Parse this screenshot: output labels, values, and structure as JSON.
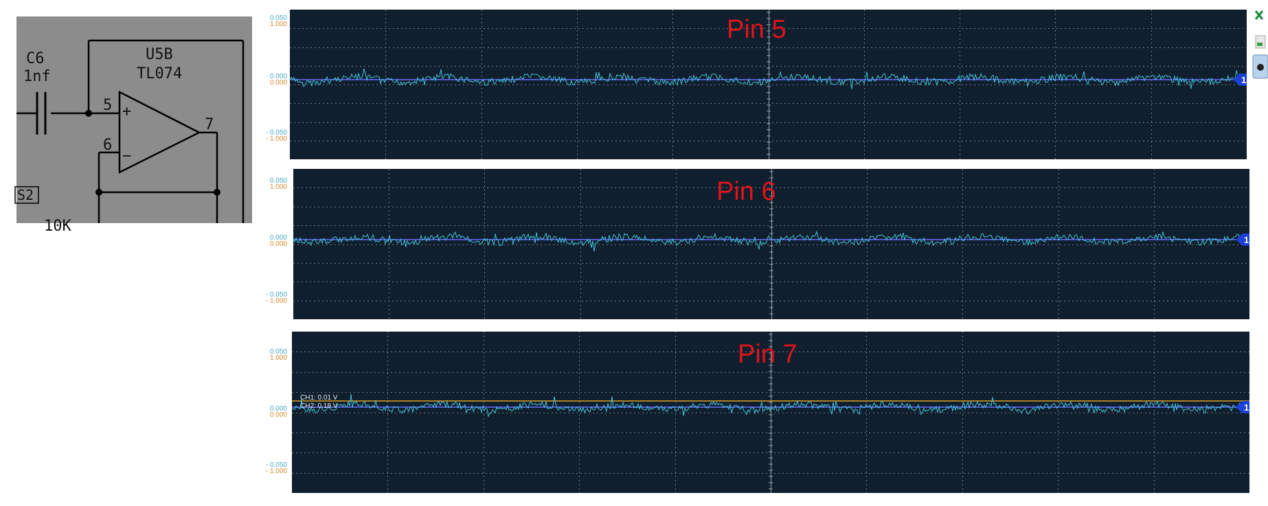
{
  "schematic": {
    "capacitor_ref": "C6",
    "capacitor_value": "1nf",
    "opamp_ref": "U5B",
    "opamp_part": "TL074",
    "pin_plus": "5",
    "pin_minus": "6",
    "pin_out": "7",
    "plus_sign": "+",
    "minus_sign": "−",
    "switch_ref": "S2",
    "partial_value": "10K"
  },
  "scopes": [
    {
      "title": "Pin 5",
      "scale_top": [
        "0.050",
        "1.000"
      ],
      "scale_zero": [
        "0.000",
        "0.000"
      ],
      "scale_bottom": [
        "- 0.050",
        "- 1.000"
      ],
      "marker": "1"
    },
    {
      "title": "Pin 6",
      "scale_top": [
        "0.050",
        "1.000"
      ],
      "scale_zero": [
        "0.000",
        "0.000"
      ],
      "scale_bottom": [
        "- 0.050",
        "- 1.000"
      ],
      "marker": "1"
    },
    {
      "title": "Pin 7",
      "scale_top": [
        "0.050",
        "1.000"
      ],
      "scale_zero": [
        "0.000",
        "0.000"
      ],
      "scale_bottom": [
        "- 0.050",
        "- 1.000"
      ],
      "marker": "1",
      "ch1_readout": "CH1: 0.01 V",
      "ch2_readout": "CH2: 0.18 V"
    }
  ],
  "colors": {
    "scope_bg": "#0f1f2e",
    "grid": "#6c7a88",
    "trace_ch1": "#43c4d8",
    "baseline_ch2": "#6b6bff",
    "trace_orange": "#e0a020",
    "title_red": "#e0141b",
    "marker_blue": "#1d3fd6"
  },
  "icons": [
    "close-x-icon",
    "tool-icon",
    "probe-icon"
  ]
}
